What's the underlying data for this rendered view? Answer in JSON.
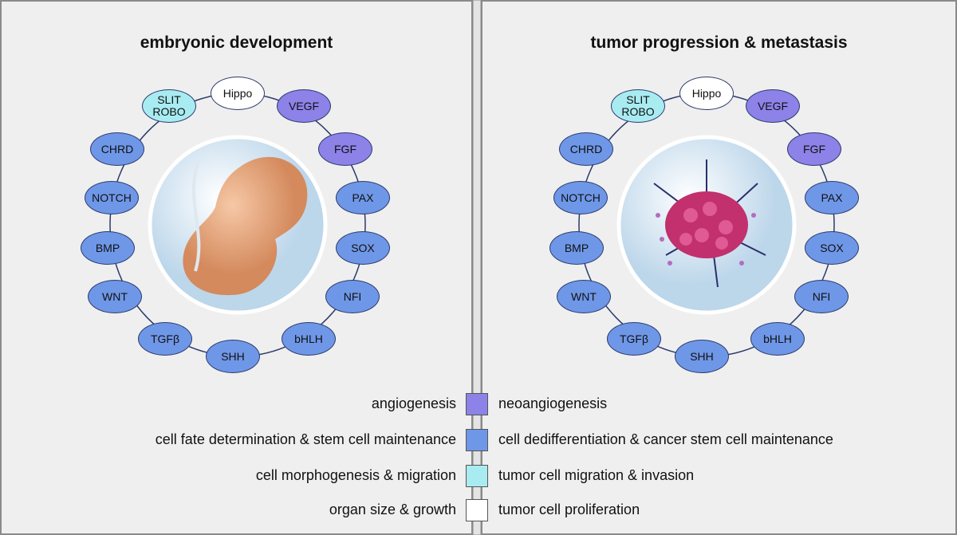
{
  "panels": [
    {
      "title": "embryonic development",
      "nodes": [
        "Hippo",
        "VEGF",
        "FGF",
        "PAX",
        "SOX",
        "NFI",
        "bHLH",
        "SHH",
        "TGFβ",
        "WNT",
        "BMP",
        "NOTCH",
        "CHRD",
        "SLIT ROBO"
      ]
    },
    {
      "title": "tumor progression & metastasis",
      "nodes": [
        "Hippo",
        "VEGF",
        "FGF",
        "PAX",
        "SOX",
        "NFI",
        "bHLH",
        "SHH",
        "TGFβ",
        "WNT",
        "BMP",
        "NOTCH",
        "CHRD",
        "SLIT ROBO"
      ]
    }
  ],
  "legend": [
    {
      "left": "angiogenesis",
      "right": "neoangiogenesis"
    },
    {
      "left": "cell fate determination & stem cell maintenance",
      "right": "cell dedifferentiation & cancer stem cell maintenance"
    },
    {
      "left": "cell morphogenesis & migration",
      "right": "tumor cell migration & invasion"
    },
    {
      "left": "organ size & growth",
      "right": "tumor cell proliferation"
    }
  ]
}
